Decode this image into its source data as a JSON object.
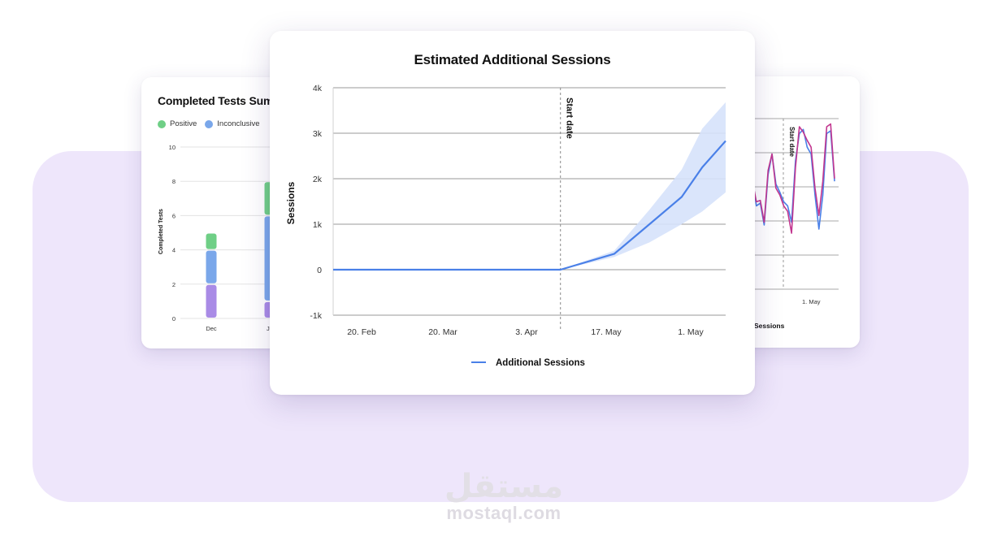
{
  "colors": {
    "positive": "#6fcf86",
    "inconclusive": "#7aa7ea",
    "negative": "#a98be6",
    "line_blue": "#4a80e8",
    "band": "#d6e2fb",
    "line_magenta": "#c2368f"
  },
  "watermark": {
    "arabic": "مستقل",
    "latin": "mostaql.com"
  },
  "left_card": {
    "title": "Completed Tests Sum",
    "legend": [
      {
        "label": "Positive",
        "color": "#6fcf86"
      },
      {
        "label": "Inconclusive",
        "color": "#7aa7ea"
      }
    ]
  },
  "right_card": {
    "xlabel": "Sessions",
    "annotation": "Start date",
    "tick_labels": [
      "ay",
      "1. May"
    ]
  },
  "chart_data": [
    {
      "type": "line",
      "title": "Estimated Additional Sessions",
      "xlabel": "",
      "ylabel": "Sessions",
      "x_tick_labels": [
        "20. Feb",
        "20. Mar",
        "3. Apr",
        "17. May",
        "1. May"
      ],
      "y_ticks": [
        -1000,
        0,
        1000,
        2000,
        3000,
        4000
      ],
      "y_tick_labels": [
        "-1k",
        "0",
        "1k",
        "2k",
        "3k",
        "4k"
      ],
      "ylim": [
        -1000,
        4000
      ],
      "grid": true,
      "legend_position": "bottom-center",
      "annotation": {
        "label": "Start date",
        "x_index": 3.88
      },
      "series": [
        {
          "name": "Additional Sessions",
          "x_index": [
            0,
            3.88,
            4.8,
            5.4,
            5.95,
            6.3,
            6.7
          ],
          "values": [
            0,
            0,
            350,
            1000,
            1600,
            2250,
            2830
          ],
          "band_lower": [
            0,
            0,
            280,
            600,
            1000,
            1280,
            1700
          ],
          "band_upper": [
            0,
            0,
            420,
            1320,
            2200,
            3100,
            3680
          ]
        }
      ]
    },
    {
      "type": "bar",
      "title": "Completed Tests Sum",
      "xlabel": "",
      "ylabel": "Completed Tests",
      "categories": [
        "Dec",
        "Ja"
      ],
      "y_ticks": [
        0,
        2,
        4,
        6,
        8,
        10
      ],
      "ylim": [
        0,
        10
      ],
      "series": [
        {
          "name": "",
          "color": "#a98be6",
          "values": [
            2,
            1
          ]
        },
        {
          "name": "Inconclusive",
          "color": "#7aa7ea",
          "values": [
            2,
            5
          ]
        },
        {
          "name": "Positive",
          "color": "#6fcf86",
          "values": [
            1,
            2
          ]
        }
      ]
    },
    {
      "type": "line",
      "xlabel": "Sessions",
      "x_tick_labels": [
        "ay",
        "1. May"
      ],
      "annotation": {
        "label": "Start date"
      },
      "series": [
        {
          "name": "",
          "color": "#4a80e8",
          "values": [
            0.62,
            0.42,
            0.44,
            0.28,
            0.65,
            0.8,
            0.58,
            0.52,
            0.45,
            0.42,
            0.3,
            0.75,
            0.95,
            0.98,
            0.85,
            0.8,
            0.5,
            0.25,
            0.5,
            0.95,
            0.97,
            0.6
          ]
        },
        {
          "name": "",
          "color": "#c2368f",
          "values": [
            0.6,
            0.45,
            0.46,
            0.3,
            0.68,
            0.8,
            0.55,
            0.5,
            0.42,
            0.38,
            0.22,
            0.7,
            1.0,
            0.96,
            0.9,
            0.85,
            0.55,
            0.35,
            0.6,
            1.0,
            1.02,
            0.62
          ]
        }
      ]
    }
  ]
}
